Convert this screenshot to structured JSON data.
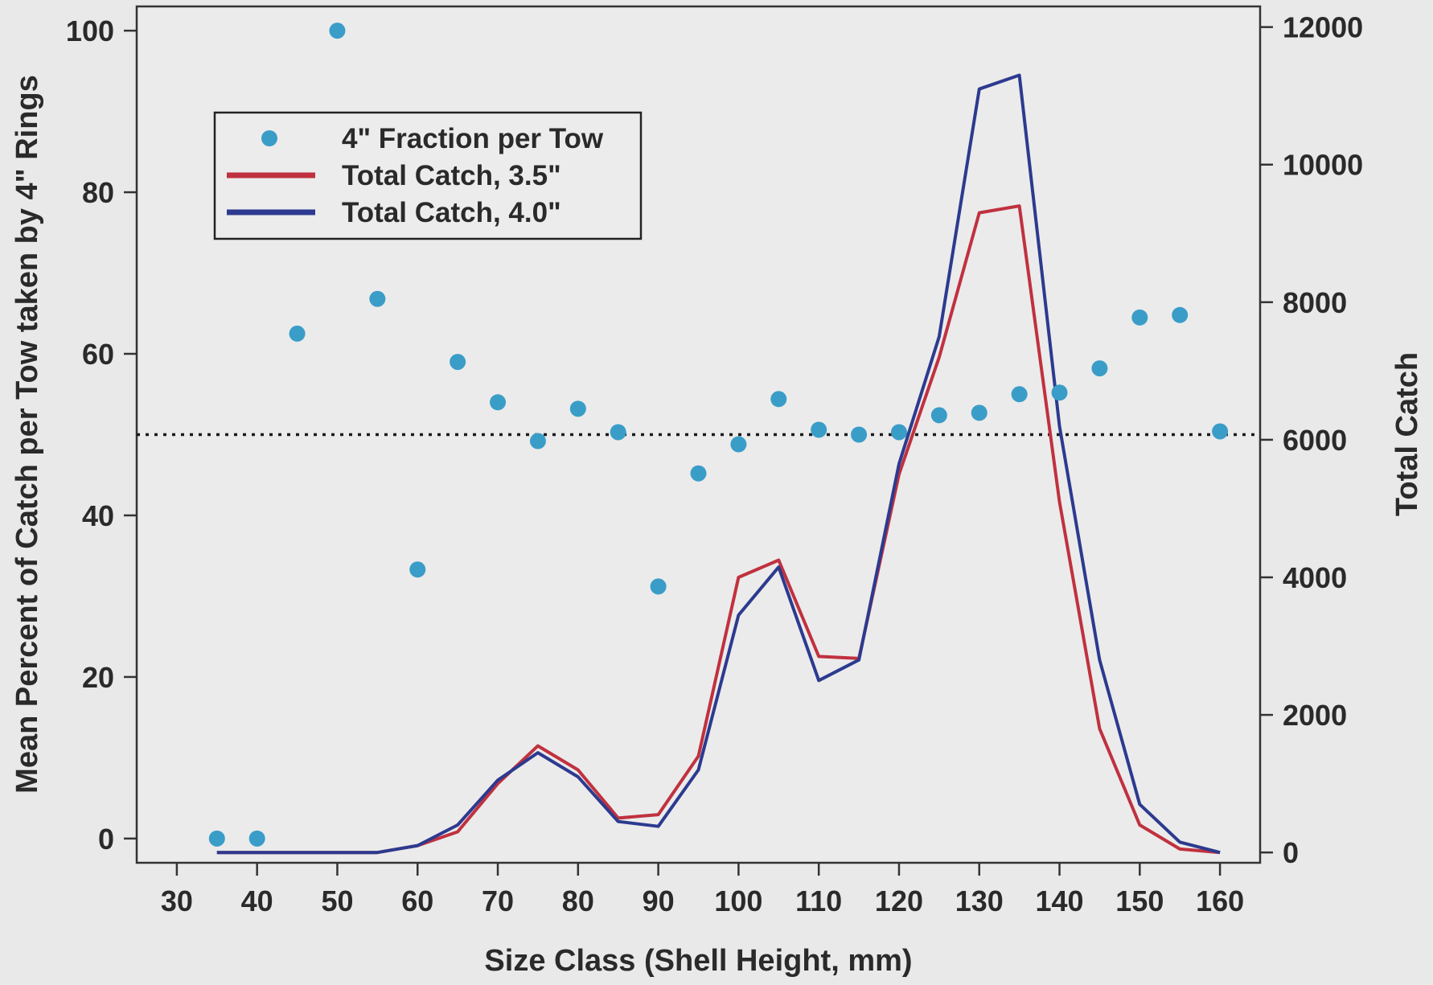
{
  "chart_data": {
    "type": "line",
    "xlabel": "Size Class (Shell Height, mm)",
    "ylabel_left": "Mean Percent of Catch per Tow taken by 4\" Rings",
    "ylabel_right": "Total Catch",
    "xlim": [
      25,
      165
    ],
    "ylim_left": [
      -3,
      103
    ],
    "ylim_right": [
      -150,
      12300
    ],
    "x_ticks": [
      30,
      40,
      50,
      60,
      70,
      80,
      90,
      100,
      110,
      120,
      130,
      140,
      150,
      160
    ],
    "y_left_ticks": [
      0,
      20,
      40,
      60,
      80,
      100
    ],
    "y_right_ticks": [
      0,
      2000,
      4000,
      6000,
      8000,
      10000,
      12000
    ],
    "reference_line": {
      "axis": "left",
      "y": 50,
      "style": "dotted"
    },
    "legend": {
      "position": "top-left",
      "entries": [
        "4\" Fraction per Tow",
        "Total Catch, 3.5\"",
        "Total Catch, 4.0\""
      ]
    },
    "points_series": {
      "name": "4\" Fraction per Tow",
      "axis": "left",
      "color": "#3a9dc8",
      "x": [
        35,
        40,
        45,
        50,
        55,
        60,
        65,
        70,
        75,
        80,
        85,
        90,
        95,
        100,
        105,
        110,
        115,
        120,
        125,
        130,
        135,
        140,
        145,
        150,
        155,
        160
      ],
      "y": [
        0,
        0,
        62.5,
        100,
        66.8,
        33.3,
        59,
        54,
        49.2,
        53.2,
        50.3,
        31.2,
        45.2,
        48.8,
        54.4,
        50.6,
        50,
        50.3,
        52.4,
        52.7,
        55,
        55.2,
        58.2,
        64.5,
        64.8,
        50.4
      ]
    },
    "line_series": [
      {
        "name": "Total Catch, 3.5\"",
        "axis": "right",
        "color": "#c0313f",
        "x": [
          35,
          40,
          45,
          50,
          55,
          60,
          65,
          70,
          75,
          80,
          85,
          90,
          95,
          100,
          105,
          110,
          115,
          120,
          125,
          130,
          135,
          140,
          145,
          150,
          155,
          160
        ],
        "y": [
          0,
          0,
          0,
          0,
          0,
          100,
          300,
          1000,
          1550,
          1200,
          500,
          550,
          1400,
          4000,
          4250,
          2850,
          2820,
          5500,
          7200,
          9300,
          9400,
          5100,
          1800,
          400,
          50,
          0
        ]
      },
      {
        "name": "Total Catch, 4.0\"",
        "axis": "right",
        "color": "#2c3a8f",
        "x": [
          35,
          40,
          45,
          50,
          55,
          60,
          65,
          70,
          75,
          80,
          85,
          90,
          95,
          100,
          105,
          110,
          115,
          120,
          125,
          130,
          135,
          140,
          145,
          150,
          155,
          160
        ],
        "y": [
          0,
          0,
          0,
          0,
          0,
          100,
          400,
          1050,
          1450,
          1100,
          450,
          380,
          1200,
          3450,
          4150,
          2500,
          2800,
          5650,
          7500,
          11100,
          11300,
          6200,
          2800,
          700,
          150,
          0
        ]
      }
    ]
  }
}
